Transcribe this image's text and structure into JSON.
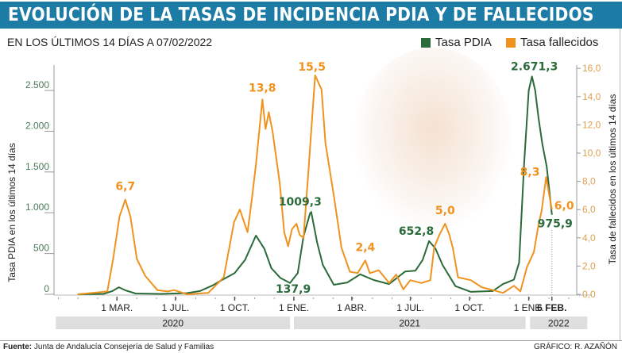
{
  "header": {
    "title": "EVOLUCIÓN DE LA TASAS DE INCIDENCIA PDIA Y DE FALLECIDOS",
    "subtitle": "EN LOS ÚLTIMOS 14 DÍAS A 07/02/2022"
  },
  "footer": {
    "source_label": "Fuente:",
    "source_text": "Junta de Andalucía Consejería de Salud y Familias",
    "credit": "GRÁFICO: R. AZAÑÓN"
  },
  "colors": {
    "pdia": "#2b6b3a",
    "fallecidos": "#f0921e",
    "header": "#1d7ca6"
  },
  "chart_data": {
    "type": "line",
    "title": "EVOLUCIÓN DE LA TASAS DE INCIDENCIA PDIA Y DE FALLECIDOS",
    "x_unit": "days since 2020-01-01",
    "xlim": [
      30,
      790
    ],
    "ylabel_left": "Tasa PDIA en los últimos 14 días",
    "ylabel_right": "Tasa de fallecidos en los últimos 14 días",
    "ylim_left": [
      0,
      2750
    ],
    "ylim_right": [
      0,
      16.5
    ],
    "yticks_left": [
      {
        "v": 0,
        "label": "0"
      },
      {
        "v": 500,
        "label": "500"
      },
      {
        "v": 1000,
        "label": "1.000"
      },
      {
        "v": 1500,
        "label": "1.500"
      },
      {
        "v": 2000,
        "label": "2.000"
      },
      {
        "v": 2500,
        "label": "2.500"
      }
    ],
    "yticks_right": [
      {
        "v": 0,
        "label": "0,0"
      },
      {
        "v": 2,
        "label": "2,0"
      },
      {
        "v": 4,
        "label": "4,0"
      },
      {
        "v": 6,
        "label": "6,0"
      },
      {
        "v": 8,
        "label": "8,0"
      },
      {
        "v": 10,
        "label": "10,0"
      },
      {
        "v": 12,
        "label": "12,0"
      },
      {
        "v": 14,
        "label": "14,0"
      },
      {
        "v": 16,
        "label": "16,0"
      }
    ],
    "xticks": [
      {
        "day": 91,
        "label": "1 MAR."
      },
      {
        "day": 182,
        "label": "1 JUL."
      },
      {
        "day": 274,
        "label": "1 OCT."
      },
      {
        "day": 366,
        "label": "1 ENE."
      },
      {
        "day": 456,
        "label": "1 ABR."
      },
      {
        "day": 547,
        "label": "1 JUL."
      },
      {
        "day": 639,
        "label": "1 OCT."
      },
      {
        "day": 731,
        "label": "1 ENE."
      },
      {
        "day": 767,
        "label": "6 FEB.",
        "bold": true
      }
    ],
    "years": [
      {
        "label": "2020",
        "from": -4,
        "to": 360
      },
      {
        "label": "2021",
        "from": 366,
        "to": 726
      },
      {
        "label": "2022",
        "from": 733,
        "to": 822
      }
    ],
    "legend": [
      {
        "name": "Tasa PDIA",
        "key": "pdia"
      },
      {
        "name": "Tasa fallecidos",
        "key": "fallecidos"
      }
    ],
    "legend_position": "top-right",
    "series": [
      {
        "name": "Tasa PDIA",
        "axis": "left",
        "key": "pdia",
        "x": [
          30,
          70,
          84,
          94,
          104,
          120,
          160,
          200,
          220,
          240,
          252,
          274,
          290,
          307,
          320,
          331,
          345,
          360,
          372,
          381,
          391,
          393,
          402,
          411,
          428,
          449,
          469,
          490,
          514,
          539,
          555,
          566,
          576,
          586,
          597,
          617,
          641,
          675,
          691,
          708,
          716,
          724,
          731,
          736,
          741,
          746,
          752,
          759,
          767
        ],
        "y": [
          0,
          5,
          40,
          87,
          50,
          10,
          5,
          15,
          40,
          110,
          165,
          260,
          420,
          720,
          560,
          320,
          200,
          137.9,
          260,
          710,
          990,
          1009.3,
          640,
          360,
          117,
          145,
          245,
          175,
          125,
          280,
          290,
          420,
          652.8,
          560,
          360,
          100,
          30,
          40,
          125,
          180,
          390,
          1620,
          2500,
          2671.3,
          2500,
          2170,
          1850,
          1560,
          975.9
        ]
      },
      {
        "name": "Tasa fallecidos",
        "axis": "right",
        "key": "fallecidos",
        "x": [
          30,
          76,
          85,
          95,
          104,
          112,
          122,
          135,
          154,
          170,
          180,
          200,
          233,
          257,
          273,
          282,
          294,
          300,
          307,
          317,
          322,
          327,
          333,
          344,
          351,
          357,
          363,
          370,
          375,
          381,
          389,
          399,
          409,
          415,
          428,
          440,
          453,
          465,
          477,
          484,
          498,
          514,
          525,
          536,
          547,
          564,
          578,
          584,
          592,
          601,
          607,
          613,
          621,
          641,
          658,
          675,
          691,
          708,
          718,
          728,
          739,
          746,
          751,
          758,
          763,
          767
        ],
        "y": [
          0,
          0.2,
          2.5,
          5.5,
          6.7,
          5.5,
          2.5,
          1.3,
          0.3,
          0.2,
          0.3,
          0,
          0.1,
          1.2,
          5.1,
          6.0,
          4.4,
          6.5,
          9.2,
          13.8,
          11.7,
          12.9,
          11.5,
          7.9,
          4.4,
          3.4,
          4.6,
          5.0,
          4.2,
          4.0,
          9.0,
          15.5,
          14.5,
          10.7,
          7.0,
          3.3,
          1.6,
          1.5,
          2.4,
          1.5,
          1.7,
          0.8,
          1.4,
          0.35,
          1.0,
          0.8,
          1.0,
          3.3,
          4.2,
          5.0,
          4.3,
          3.3,
          1.2,
          1.0,
          0.5,
          0.3,
          0.1,
          0.6,
          0.2,
          1.9,
          3.0,
          4.9,
          5.9,
          8.3,
          7.0,
          6.0
        ]
      }
    ],
    "annotations": [
      {
        "series": "fallecidos",
        "day": 104,
        "value": 6.7,
        "label": "6,7"
      },
      {
        "series": "fallecidos",
        "day": 317,
        "value": 13.8,
        "label": "13,8"
      },
      {
        "series": "fallecidos",
        "day": 399,
        "value": 15.5,
        "label": "15,5"
      },
      {
        "series": "fallecidos",
        "day": 477,
        "value": 2.4,
        "label": "2,4"
      },
      {
        "series": "fallecidos",
        "day": 601,
        "value": 5.0,
        "label": "5,0"
      },
      {
        "series": "fallecidos",
        "day": 758,
        "value": 8.3,
        "label": "8,3"
      },
      {
        "series": "fallecidos",
        "day": 767,
        "value": 6.0,
        "label": "6,0"
      },
      {
        "series": "pdia",
        "day": 360,
        "value": 137.9,
        "label": "137,9"
      },
      {
        "series": "pdia",
        "day": 393,
        "value": 1009.3,
        "label": "1009,3"
      },
      {
        "series": "pdia",
        "day": 576,
        "value": 652.8,
        "label": "652,8"
      },
      {
        "series": "pdia",
        "day": 736,
        "value": 2671.3,
        "label": "2.671,3"
      },
      {
        "series": "pdia",
        "day": 767,
        "value": 975.9,
        "label": "975,9"
      }
    ]
  }
}
